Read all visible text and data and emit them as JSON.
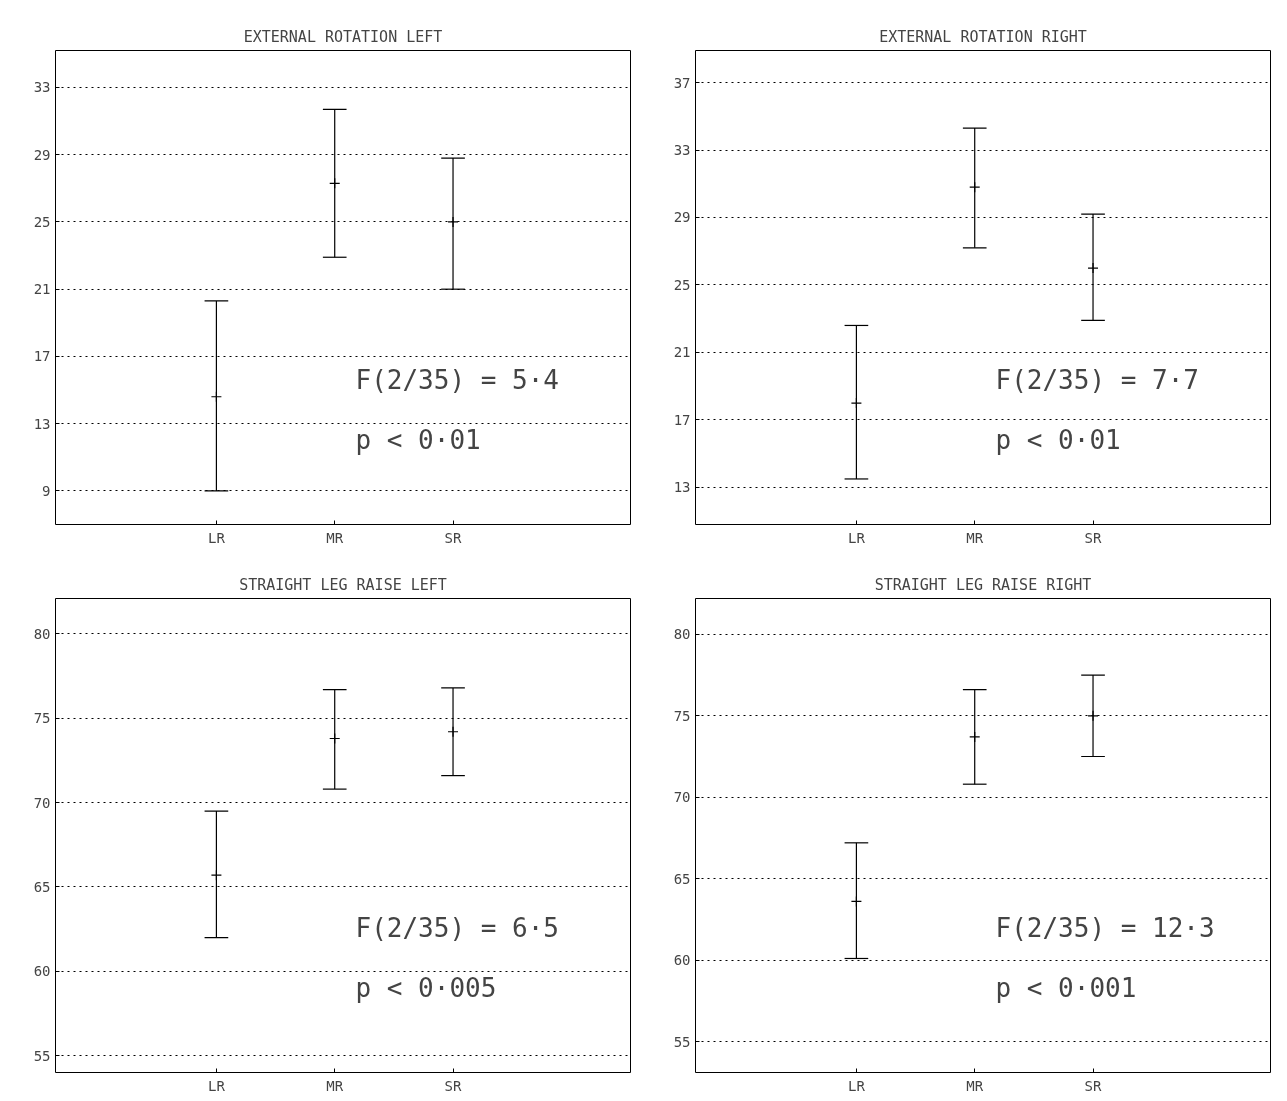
{
  "chart_data": [
    {
      "type": "scatter",
      "title": "EXTERNAL ROTATION LEFT",
      "categories": [
        "LR",
        "MR",
        "SR"
      ],
      "values": [
        14.6,
        27.3,
        25.0
      ],
      "errors": [
        [
          9,
          20.3
        ],
        [
          22.9,
          31.7
        ],
        [
          21.0,
          28.8
        ]
      ],
      "color": "#000000",
      "marker": "cross",
      "ylim": [
        7,
        35.2
      ],
      "yticks": [
        9,
        13,
        17,
        21,
        25,
        29,
        33
      ],
      "grid": "y",
      "line_style": "dotted",
      "annotations": [
        "F(2/35) = 5·4",
        "p < 0·01"
      ]
    },
    {
      "type": "scatter",
      "title": "EXTERNAL ROTATION RIGHT",
      "categories": [
        "LR",
        "MR",
        "SR"
      ],
      "values": [
        18.0,
        30.8,
        26.0
      ],
      "errors": [
        [
          13.5,
          22.6
        ],
        [
          27.2,
          34.3
        ],
        [
          22.9,
          29.2
        ]
      ],
      "color": "#000000",
      "marker": "cross",
      "ylim": [
        10.8,
        38.9
      ],
      "yticks": [
        13,
        17,
        21,
        25,
        29,
        33,
        37
      ],
      "grid": "y",
      "line_style": "dotted",
      "annotations": [
        "F(2/35) = 7·7",
        "p < 0·01"
      ]
    },
    {
      "type": "scatter",
      "title": "STRAIGHT LEG RAISE LEFT",
      "categories": [
        "LR",
        "MR",
        "SR"
      ],
      "values": [
        65.7,
        73.8,
        74.2
      ],
      "errors": [
        [
          62.0,
          69.5
        ],
        [
          70.8,
          76.7
        ],
        [
          71.6,
          76.8
        ]
      ],
      "color": "#000000",
      "marker": "cross",
      "ylim": [
        54.0,
        82.1
      ],
      "yticks": [
        55,
        60,
        65,
        70,
        75,
        80
      ],
      "grid": "y",
      "line_style": "dotted",
      "annotations": [
        "F(2/35) = 6·5",
        "p < 0·005"
      ]
    },
    {
      "type": "scatter",
      "title": "STRAIGHT LEG RAISE RIGHT",
      "categories": [
        "LR",
        "MR",
        "SR"
      ],
      "values": [
        63.6,
        73.7,
        75.0
      ],
      "errors": [
        [
          60.1,
          67.2
        ],
        [
          70.8,
          76.6
        ],
        [
          72.5,
          77.5
        ]
      ],
      "color": "#000000",
      "marker": "cross",
      "ylim": [
        53.1,
        82.2
      ],
      "yticks": [
        55,
        60,
        65,
        70,
        75,
        80
      ],
      "grid": "y",
      "line_style": "dotted",
      "annotations": [
        "F(2/35) = 12·3",
        "p < 0·001"
      ]
    }
  ]
}
